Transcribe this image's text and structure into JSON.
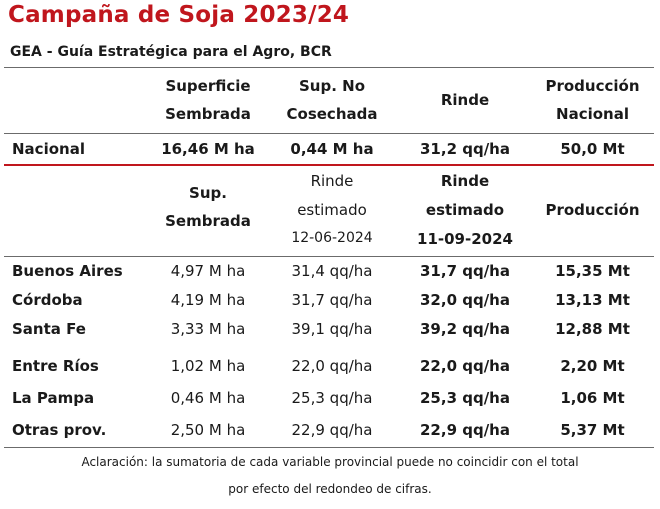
{
  "title": "Campaña de Soja 2023/24",
  "subtitle": "GEA - Guía Estratégica para el Agro, BCR",
  "national_header": {
    "col1": [
      "Superficie",
      "Sembrada"
    ],
    "col2": [
      "Sup. No",
      "Cosechada"
    ],
    "col3": "Rinde",
    "col4": [
      "Producción",
      "Nacional"
    ]
  },
  "national_row": {
    "label": "Nacional",
    "sup_sembrada": "16,46 M ha",
    "sup_no_cosechada": "0,44 M ha",
    "rinde": "31,2 qq/ha",
    "produccion": "50,0 Mt"
  },
  "provincial_header": {
    "col1": [
      "Sup.",
      "Sembrada"
    ],
    "col2": [
      "Rinde",
      "estimado",
      "12-06-2024"
    ],
    "col3": [
      "Rinde",
      "estimado",
      "11-09-2024"
    ],
    "col4": "Producción"
  },
  "provinces": [
    {
      "name": "Buenos Aires",
      "sup": "4,97 M ha",
      "rinde_prev": "31,4 qq/ha",
      "rinde_new": "31,7 qq/ha",
      "prod": "15,35 Mt"
    },
    {
      "name": "Córdoba",
      "sup": "4,19 M ha",
      "rinde_prev": "31,7 qq/ha",
      "rinde_new": "32,0 qq/ha",
      "prod": "13,13 Mt"
    },
    {
      "name": "Santa Fe",
      "sup": "3,33 M ha",
      "rinde_prev": "39,1 qq/ha",
      "rinde_new": "39,2 qq/ha",
      "prod": "12,88 Mt"
    },
    {
      "name": "Entre Ríos",
      "sup": "1,02 M ha",
      "rinde_prev": "22,0 qq/ha",
      "rinde_new": "22,0 qq/ha",
      "prod": "2,20 Mt"
    },
    {
      "name": "La Pampa",
      "sup": "0,46 M ha",
      "rinde_prev": "25,3 qq/ha",
      "rinde_new": "25,3 qq/ha",
      "prod": "1,06 Mt"
    },
    {
      "name": "Otras prov.",
      "sup": "2,50 M ha",
      "rinde_prev": "22,9 qq/ha",
      "rinde_new": "22,9 qq/ha",
      "prod": "5,37 Mt"
    }
  ],
  "footnote": [
    "Aclaración: la sumatoria de cada variable provincial puede no coincidir con el total",
    "por efecto del redondeo de cifras."
  ],
  "colors": {
    "title": "#c0161d",
    "rule_red": "#c0161d",
    "rule_gray": "#6b6b6b"
  }
}
